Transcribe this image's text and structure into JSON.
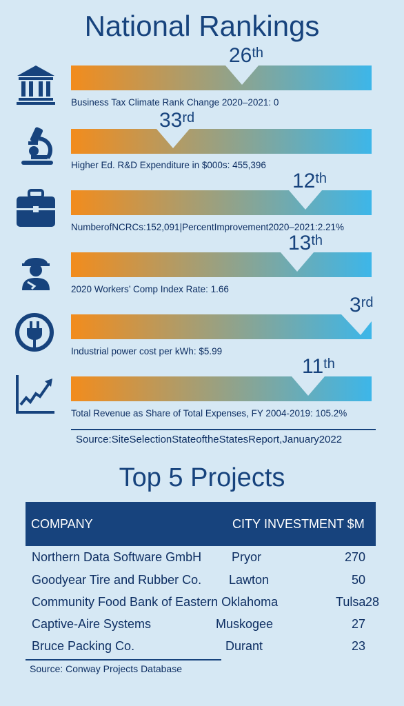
{
  "rankings_title": "National Rankings",
  "rankings": [
    {
      "icon": "bank-building-icon",
      "rank": "26",
      "suffix": "th",
      "caption": "Business Tax Climate Rank Change 2020–2021: 0"
    },
    {
      "icon": "microscope-icon",
      "rank": "33",
      "suffix": "rd",
      "caption": "Higher Ed. R&D Expenditure in $000s: 455,396"
    },
    {
      "icon": "briefcase-icon",
      "rank": "12",
      "suffix": "th",
      "caption": "NumberofNCRCs:152,091|PercentImprovement2020–2021:2.21%"
    },
    {
      "icon": "construction-worker-icon",
      "rank": "13",
      "suffix": "th",
      "caption": "2020 Workers’ Comp Index Rate: 1.66"
    },
    {
      "icon": "power-plug-icon",
      "rank": "3",
      "suffix": "rd",
      "caption": "Industrial power cost per kWh: $5.99"
    },
    {
      "icon": "trend-chart-icon",
      "rank": "11",
      "suffix": "th",
      "caption": "Total Revenue as Share of Total Expenses, FY 2004-2019: 105.2%"
    }
  ],
  "rankings_source": "Source:SiteSelectionStateoftheStatesReport,January2022",
  "projects_title": "Top 5 Projects",
  "table_headers": {
    "company": "COMPANY",
    "city": "CITY",
    "investment": "INVESTMENT $M"
  },
  "projects": [
    {
      "company": "Northern Data Software GmbH",
      "city": "Pryor",
      "investment": "270"
    },
    {
      "company": "Goodyear Tire and Rubber Co.",
      "city": "Lawton",
      "investment": "50"
    },
    {
      "company": "Community Food Bank of Eastern Oklahoma",
      "city": "Tulsa",
      "investment": "28"
    },
    {
      "company": "Captive-Aire Systems",
      "city": "Muskogee",
      "investment": "27"
    },
    {
      "company": "Bruce Packing Co.",
      "city": "Durant",
      "investment": "23"
    }
  ],
  "projects_source": "Source: Conway Projects Database",
  "colors": {
    "navy": "#17437d",
    "bar_start": "#f28c1d",
    "bar_end": "#3db6e9",
    "background": "#d6e8f4"
  }
}
